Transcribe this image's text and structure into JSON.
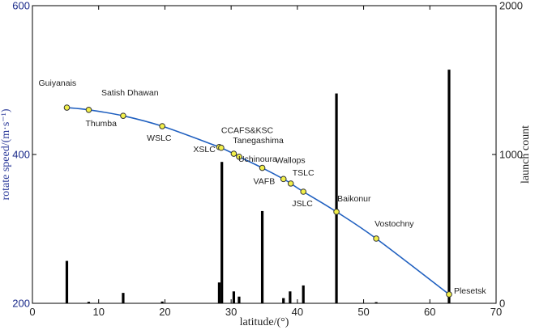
{
  "chart_data": {
    "type": "line",
    "title": "",
    "xlabel": "latitude/(°)",
    "ylabel_left": "rotate speed/(m·s⁻¹)",
    "ylabel_right": "launch count",
    "xlim": [
      0,
      70
    ],
    "ylim_left": [
      200,
      600
    ],
    "ylim_right": [
      0,
      2000
    ],
    "x_ticks": [
      0,
      10,
      20,
      30,
      40,
      50,
      60,
      70
    ],
    "y_left_ticks": [
      200,
      400,
      600
    ],
    "y_right_ticks": [
      0,
      1000,
      2000
    ],
    "grid": false,
    "legend": "none",
    "colors": {
      "curve": "#2060c0",
      "marker_fill": "#f2f04a",
      "marker_edge": "#333333",
      "bars": "#000000",
      "left_axis": "#2b3a9a"
    },
    "series": [
      {
        "type": "line",
        "axis": "left",
        "points": [
          {
            "site": "Guiyanais",
            "x": 5.2,
            "y": 463
          },
          {
            "site": "Thumba",
            "x": 8.5,
            "y": 460
          },
          {
            "site": "Satish Dhawan",
            "x": 13.7,
            "y": 452
          },
          {
            "site": "WSLC",
            "x": 19.6,
            "y": 438
          },
          {
            "site": "XSLC",
            "x": 28.2,
            "y": 410
          },
          {
            "site": "CCAFS&KSC",
            "x": 28.5,
            "y": 409
          },
          {
            "site": "Tanegashima",
            "x": 30.4,
            "y": 401
          },
          {
            "site": "Uchinoura",
            "x": 31.2,
            "y": 397
          },
          {
            "site": "VAFB",
            "x": 34.7,
            "y": 382
          },
          {
            "site": "Wallops",
            "x": 37.9,
            "y": 367
          },
          {
            "site": "TSLC",
            "x": 39.0,
            "y": 361
          },
          {
            "site": "JSLC",
            "x": 40.9,
            "y": 350
          },
          {
            "site": "Baikonur",
            "x": 45.9,
            "y": 323
          },
          {
            "site": "Vostochny",
            "x": 51.9,
            "y": 287
          },
          {
            "site": "Plesetsk",
            "x": 62.9,
            "y": 212
          }
        ]
      },
      {
        "type": "bar",
        "axis": "right",
        "points": [
          {
            "x": 5.2,
            "y": 285
          },
          {
            "x": 8.5,
            "y": 10
          },
          {
            "x": 13.7,
            "y": 70
          },
          {
            "x": 19.6,
            "y": 12
          },
          {
            "x": 28.2,
            "y": 140
          },
          {
            "x": 28.6,
            "y": 950
          },
          {
            "x": 30.4,
            "y": 80
          },
          {
            "x": 31.2,
            "y": 45
          },
          {
            "x": 34.7,
            "y": 620
          },
          {
            "x": 37.9,
            "y": 35
          },
          {
            "x": 38.9,
            "y": 80
          },
          {
            "x": 40.9,
            "y": 120
          },
          {
            "x": 45.9,
            "y": 1410
          },
          {
            "x": 51.9,
            "y": 8
          },
          {
            "x": 62.9,
            "y": 1570
          }
        ]
      }
    ],
    "labels": [
      {
        "text": "Guiyanais",
        "ref": 0
      },
      {
        "text": "Thumba",
        "ref": 1
      },
      {
        "text": "Satish Dhawan",
        "ref": 2
      },
      {
        "text": "WSLC",
        "ref": 3
      },
      {
        "text": "XSLC",
        "ref": 4
      },
      {
        "text": "CCAFS&KSC",
        "ref": 5
      },
      {
        "text": "Tanegashima",
        "ref": 6
      },
      {
        "text": "Uchinoura",
        "ref": 7
      },
      {
        "text": "VAFB",
        "ref": 8
      },
      {
        "text": "Wallops",
        "ref": 9
      },
      {
        "text": "TSLC",
        "ref": 10
      },
      {
        "text": "JSLC",
        "ref": 11
      },
      {
        "text": "Baikonur",
        "ref": 12
      },
      {
        "text": "Vostochny",
        "ref": 13
      },
      {
        "text": "Plesetsk",
        "ref": 14
      }
    ]
  }
}
